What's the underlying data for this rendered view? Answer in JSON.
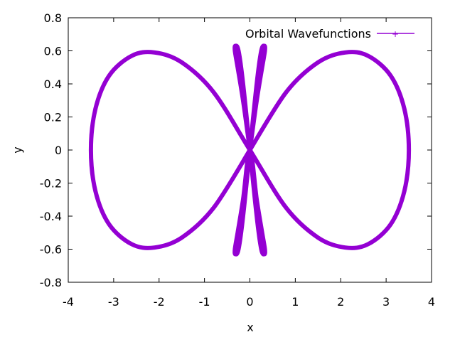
{
  "chart_data": {
    "type": "line",
    "xlabel": "x",
    "ylabel": "y",
    "xlim": [
      -4,
      4
    ],
    "ylim": [
      -0.8,
      0.8
    ],
    "x_ticks": [
      "-4",
      "-3",
      "-2",
      "-1",
      "0",
      "1",
      "2",
      "3",
      "4"
    ],
    "y_ticks": [
      "-0.8",
      "-0.6",
      "-0.4",
      "-0.2",
      "0",
      "0.2",
      "0.4",
      "0.6",
      "0.8"
    ],
    "grid": false,
    "legend_position": "top-right",
    "series": [
      {
        "name": "Orbital Wavefunctions",
        "color": "#9400d3",
        "curves": [
          {
            "shape": "figure-eight",
            "x": [
              0,
              0.8,
              1.5,
              2.1,
              2.6,
              3.1,
              3.4,
              3.5,
              3.4,
              3.1,
              2.6,
              2.1,
              1.5,
              0.8,
              0,
              -0.8,
              -1.5,
              -2.1,
              -2.6,
              -3.1,
              -3.4,
              -3.5,
              -3.4,
              -3.1,
              -2.6,
              -2.1,
              -1.5,
              -0.8,
              0
            ],
            "y": [
              0,
              0.35,
              0.53,
              0.59,
              0.57,
              0.45,
              0.25,
              0,
              -0.25,
              -0.45,
              -0.57,
              -0.59,
              -0.53,
              -0.35,
              0,
              0.35,
              0.53,
              0.59,
              0.57,
              0.45,
              0.25,
              0,
              -0.25,
              -0.45,
              -0.57,
              -0.59,
              -0.53,
              -0.35,
              0
            ]
          },
          {
            "shape": "narrow-lobes",
            "x": [
              0,
              -0.15,
              -0.27,
              -0.33,
              -0.32,
              -0.25,
              -0.15,
              0,
              0.15,
              0.25,
              0.32,
              0.33,
              0.27,
              0.15,
              0,
              -0.15,
              -0.27,
              -0.33,
              -0.32,
              -0.25,
              -0.15,
              0,
              0.15,
              0.25,
              0.32,
              0.33,
              0.27,
              0.15,
              0
            ],
            "y": [
              0,
              0.3,
              0.5,
              0.6,
              0.63,
              0.6,
              0.4,
              0,
              -0.4,
              -0.6,
              -0.63,
              -0.6,
              -0.5,
              -0.3,
              0,
              -0.3,
              -0.5,
              -0.6,
              -0.63,
              -0.6,
              -0.4,
              0,
              0.4,
              0.6,
              0.63,
              0.6,
              0.5,
              0.3,
              0
            ]
          }
        ]
      }
    ]
  }
}
